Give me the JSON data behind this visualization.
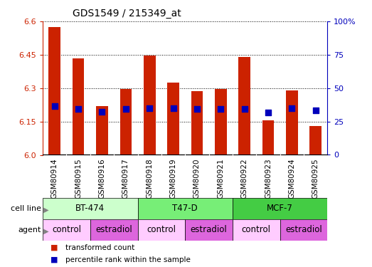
{
  "title": "GDS1549 / 215349_at",
  "samples": [
    "GSM80914",
    "GSM80915",
    "GSM80916",
    "GSM80917",
    "GSM80918",
    "GSM80919",
    "GSM80920",
    "GSM80921",
    "GSM80922",
    "GSM80923",
    "GSM80924",
    "GSM80925"
  ],
  "bar_values": [
    6.575,
    6.435,
    6.22,
    6.295,
    6.445,
    6.325,
    6.285,
    6.295,
    6.44,
    6.155,
    6.29,
    6.13
  ],
  "bar_base": 6.0,
  "blue_dot_values": [
    6.22,
    6.205,
    6.195,
    6.205,
    6.21,
    6.21,
    6.205,
    6.205,
    6.205,
    6.19,
    6.21,
    6.2
  ],
  "ylim": [
    6.0,
    6.6
  ],
  "yticks_left": [
    6.0,
    6.15,
    6.3,
    6.45,
    6.6
  ],
  "yticks_right": [
    0,
    25,
    50,
    75,
    100
  ],
  "bar_color": "#cc2200",
  "dot_color": "#0000bb",
  "cell_lines": [
    {
      "label": "BT-474",
      "start": 0,
      "end": 4,
      "color": "#ccffcc"
    },
    {
      "label": "T47-D",
      "start": 4,
      "end": 8,
      "color": "#77ee77"
    },
    {
      "label": "MCF-7",
      "start": 8,
      "end": 12,
      "color": "#44cc44"
    }
  ],
  "agents": [
    {
      "label": "control",
      "start": 0,
      "end": 2,
      "color": "#ffccff"
    },
    {
      "label": "estradiol",
      "start": 2,
      "end": 4,
      "color": "#dd66dd"
    },
    {
      "label": "control",
      "start": 4,
      "end": 6,
      "color": "#ffccff"
    },
    {
      "label": "estradiol",
      "start": 6,
      "end": 8,
      "color": "#dd66dd"
    },
    {
      "label": "control",
      "start": 8,
      "end": 10,
      "color": "#ffccff"
    },
    {
      "label": "estradiol",
      "start": 10,
      "end": 12,
      "color": "#dd66dd"
    }
  ],
  "legend_items": [
    {
      "label": "transformed count",
      "color": "#cc2200"
    },
    {
      "label": "percentile rank within the sample",
      "color": "#0000bb"
    }
  ],
  "bar_width": 0.5,
  "dot_size": 40,
  "xtick_bg_color": "#cccccc",
  "plot_bg_color": "#ffffff",
  "fig_bg_color": "#ffffff"
}
